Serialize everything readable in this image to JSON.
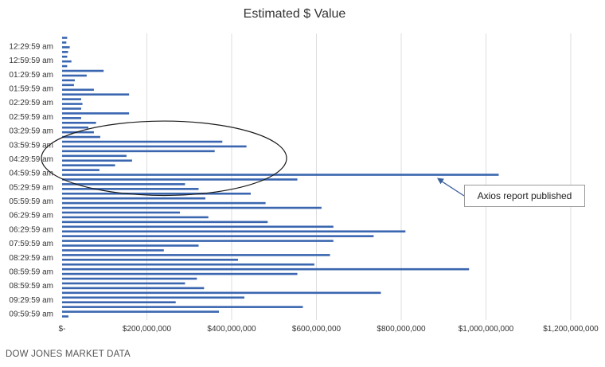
{
  "chart_data": {
    "type": "bar",
    "orientation": "horizontal",
    "title": "Estimated $ Value",
    "source": "DOW JONES MARKET DATA",
    "xlim": [
      0,
      1200000000
    ],
    "x_ticks": [
      0,
      200000000,
      400000000,
      600000000,
      800000000,
      1000000000,
      1200000000
    ],
    "x_tick_labels": [
      "$-",
      "$200,000,000",
      "$400,000,000",
      "$600,000,000",
      "$800,000,000",
      "$1,000,000,000",
      "$1,200,000,000"
    ],
    "y_tick_labels": [
      "12:29:59 am",
      "12:59:59 am",
      "01:29:59 am",
      "01:59:59 am",
      "02:29:59 am",
      "02:59:59 am",
      "03:29:59 am",
      "03:59:59 am",
      "04:29:59 am",
      "04:59:59 am",
      "05:29:59 am",
      "05:59:59 am",
      "06:29:59 am",
      "06:29:59 am",
      "07:59:59 am",
      "08:29:59 am",
      "08:59:59 am",
      "08:59:59 am",
      "09:29:59 am",
      "09:59:59 am"
    ],
    "grid": true,
    "bar_color": "#3a66b0",
    "values": [
      12000000,
      10000000,
      18000000,
      14000000,
      12000000,
      22000000,
      12000000,
      98000000,
      58000000,
      30000000,
      28000000,
      75000000,
      158000000,
      45000000,
      48000000,
      45000000,
      158000000,
      45000000,
      80000000,
      62000000,
      75000000,
      90000000,
      378000000,
      435000000,
      360000000,
      152000000,
      165000000,
      125000000,
      88000000,
      1030000000,
      555000000,
      290000000,
      322000000,
      445000000,
      338000000,
      480000000,
      612000000,
      278000000,
      345000000,
      485000000,
      640000000,
      810000000,
      735000000,
      640000000,
      322000000,
      240000000,
      632000000,
      415000000,
      595000000,
      960000000,
      555000000,
      318000000,
      290000000,
      335000000,
      752000000,
      430000000,
      268000000,
      568000000,
      370000000,
      15000000
    ],
    "annotations": [
      {
        "type": "callout",
        "text": "Axios report published",
        "target_bar_index": 29
      },
      {
        "type": "ellipse",
        "highlight_bar_range": [
          21,
          30
        ]
      }
    ]
  }
}
